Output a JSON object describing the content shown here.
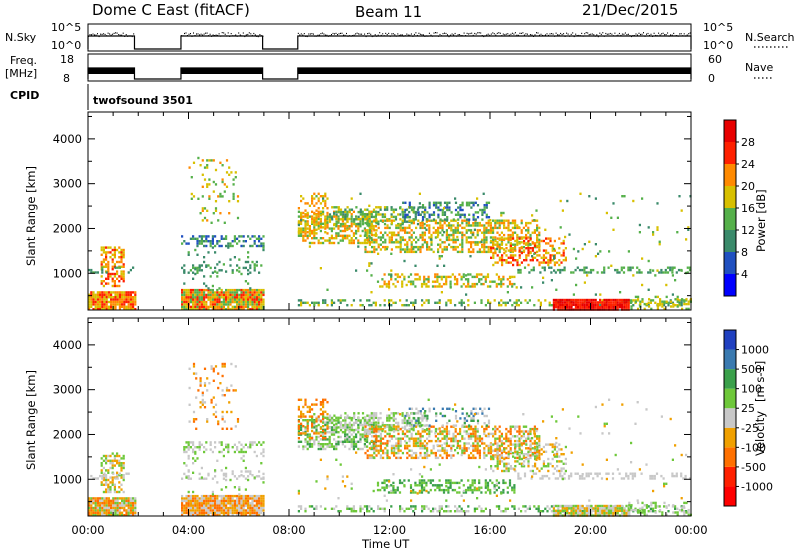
{
  "header": {
    "title": "Dome C East (fitACF)",
    "beam": "Beam 11",
    "date": "21/Dec/2015"
  },
  "top_panels": {
    "nsky_label": "N.Sky",
    "nsky_ticks": [
      "10^5",
      "10^0"
    ],
    "nsearch_label": "N.Search",
    "nsearch_ticks": [
      "10^5",
      "10^0"
    ],
    "freq_label_1": "Freq.",
    "freq_label_2": "[MHz]",
    "freq_ticks": [
      "18",
      "8"
    ],
    "nave_label": "Nave",
    "nave_ticks": [
      "60",
      "0"
    ],
    "cpid_label": "CPID",
    "cpid_value": "twofsound 3501"
  },
  "chart_data": [
    {
      "type": "heatmap",
      "panel": "power",
      "xlabel": "",
      "ylabel": "Slant Range [km]",
      "x_ticks": [
        "00:00",
        "04:00",
        "08:00",
        "12:00",
        "16:00",
        "20:00",
        "00:00"
      ],
      "x_range_hours": [
        0,
        24
      ],
      "y_ticks": [
        "1000",
        "2000",
        "3000",
        "4000"
      ],
      "y_range_km": [
        180,
        4600
      ],
      "colorbar_label": "Power [dB]",
      "colorbar_ticks": [
        "4",
        "8",
        "12",
        "16",
        "20",
        "24",
        "28"
      ],
      "colorbar_range": [
        0,
        32
      ],
      "colors": [
        "#0000ff",
        "#2050c0",
        "#3a8a6a",
        "#55b04a",
        "#d8c000",
        "#ff8a00",
        "#ff2000",
        "#e80000"
      ],
      "data_gaps_hours": [
        [
          1.85,
          3.7
        ],
        [
          6.95,
          8.35
        ]
      ]
    },
    {
      "type": "heatmap",
      "panel": "velocity",
      "xlabel": "Time UT",
      "ylabel": "Slant Range [km]",
      "x_ticks": [
        "00:00",
        "04:00",
        "08:00",
        "12:00",
        "16:00",
        "20:00",
        "00:00"
      ],
      "x_range_hours": [
        0,
        24
      ],
      "y_ticks": [
        "1000",
        "2000",
        "3000",
        "4000"
      ],
      "y_range_km": [
        180,
        4600
      ],
      "colorbar_label": "Velocity",
      "colorbar_unit": "[m s-1]",
      "colorbar_ticks": [
        "1000",
        "500",
        "100",
        "25",
        "-25",
        "-100",
        "-500",
        "-1000"
      ],
      "colors": [
        "#2040c0",
        "#3a7ab0",
        "#3aa04a",
        "#6ec83a",
        "#c8c8c8",
        "#f0a000",
        "#ff7000",
        "#ff2000",
        "#ff0000"
      ],
      "data_gaps_hours": [
        [
          1.85,
          3.7
        ],
        [
          6.95,
          8.35
        ]
      ]
    }
  ]
}
